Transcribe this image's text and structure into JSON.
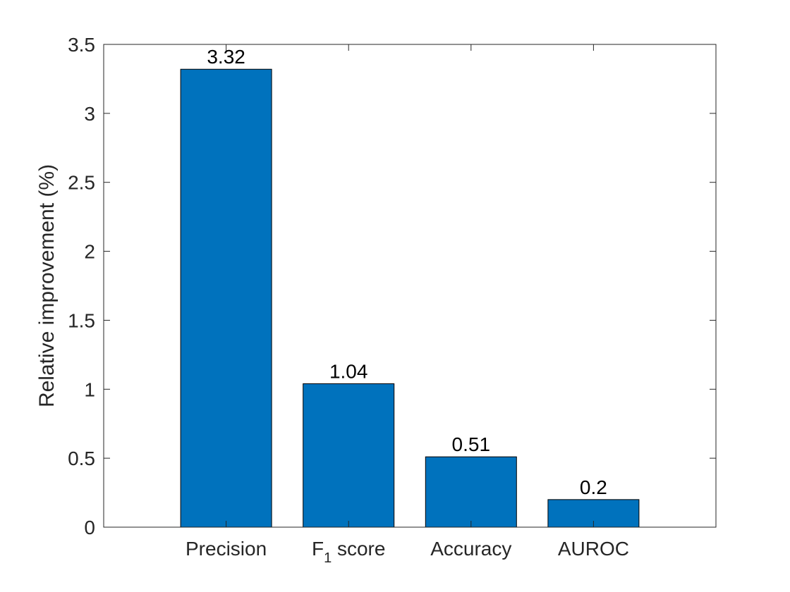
{
  "chart_data": {
    "type": "bar",
    "categories": [
      {
        "main": "Precision",
        "sub": "",
        "rest": ""
      },
      {
        "main": "F",
        "sub": "1",
        "rest": " score"
      },
      {
        "main": "Accuracy",
        "sub": "",
        "rest": ""
      },
      {
        "main": "AUROC",
        "sub": "",
        "rest": ""
      }
    ],
    "values": [
      3.32,
      1.04,
      0.51,
      0.2
    ],
    "data_labels": [
      "3.32",
      "1.04",
      "0.51",
      "0.2"
    ],
    "title": "",
    "xlabel": "",
    "ylabel": "Relative improvement (%)",
    "ylim": [
      0,
      3.5
    ],
    "yticks": [
      0,
      0.5,
      1,
      1.5,
      2,
      2.5,
      3,
      3.5
    ],
    "ytick_labels": [
      "0",
      "0.5",
      "1",
      "1.5",
      "2",
      "2.5",
      "3",
      "3.5"
    ],
    "grid": false,
    "box": true,
    "bar_color": "#0072BD",
    "axis_color": "#262626"
  }
}
